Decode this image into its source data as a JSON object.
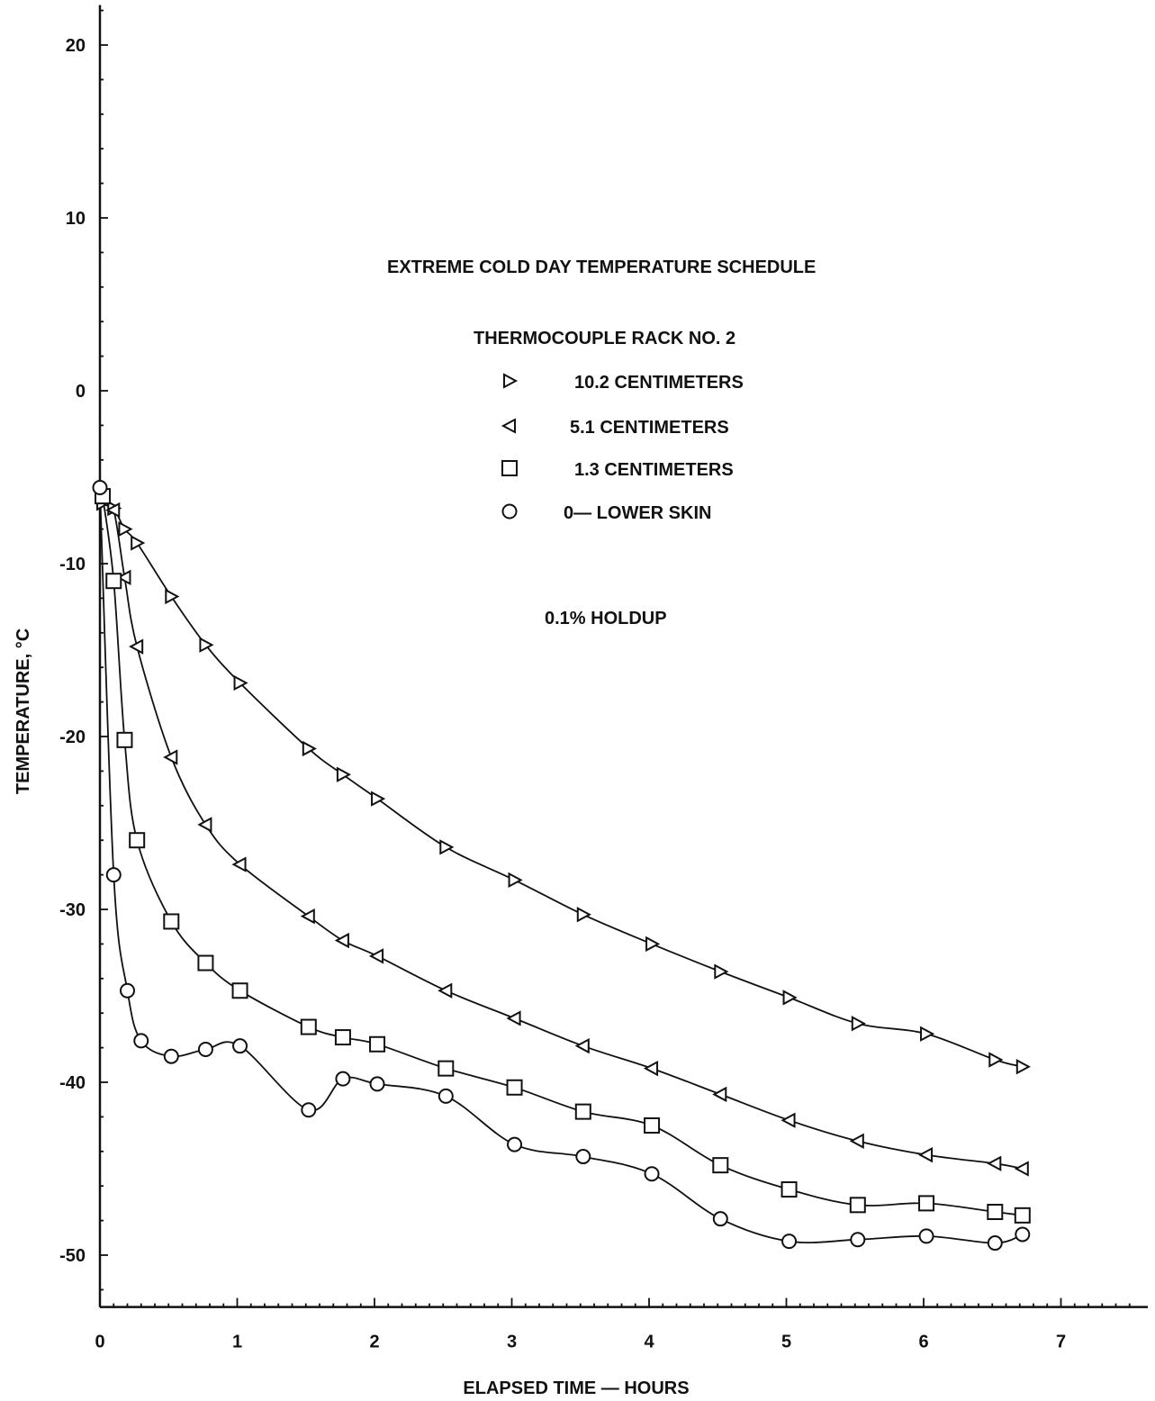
{
  "chart_data": {
    "type": "line",
    "title": "EXTREME COLD DAY TEMPERATURE SCHEDULE",
    "subtitle": "THERMOCOUPLE RACK NO. 2",
    "annotation": "0.1% HOLDUP",
    "xlabel": "ELAPSED TIME — HOURS",
    "ylabel": "TEMPERATURE, °C",
    "xlim": [
      0,
      7.5
    ],
    "ylim": [
      -53,
      22
    ],
    "x_ticks": [
      "0",
      "1",
      "2",
      "3",
      "4",
      "5",
      "6",
      "7"
    ],
    "y_ticks": [
      "20",
      "10",
      "0",
      "-10",
      "-20",
      "-30",
      "-40",
      "-50"
    ],
    "y_tick_values": [
      20,
      10,
      0,
      -10,
      -20,
      -30,
      -40,
      -50
    ],
    "x_tick_values": [
      0,
      1,
      2,
      3,
      4,
      5,
      6,
      7
    ],
    "grid": false,
    "legend_position": "top-center",
    "series": [
      {
        "name": "10.2 CENTIMETERS",
        "marker": "triangle-right",
        "x": [
          0.02,
          0.1,
          0.18,
          0.27,
          0.52,
          0.77,
          1.02,
          1.52,
          1.77,
          2.02,
          2.52,
          3.02,
          3.52,
          4.02,
          4.52,
          5.02,
          5.52,
          6.02,
          6.52,
          6.72
        ],
        "y": [
          -6.5,
          -6.8,
          -8.0,
          -8.8,
          -11.9,
          -14.7,
          -16.9,
          -20.7,
          -22.2,
          -23.6,
          -26.4,
          -28.3,
          -30.3,
          -32.0,
          -33.6,
          -35.1,
          -36.6,
          -37.2,
          -38.7,
          -39.1
        ]
      },
      {
        "name": "5.1 CENTIMETERS",
        "marker": "triangle-left",
        "x": [
          0.02,
          0.1,
          0.18,
          0.27,
          0.52,
          0.77,
          1.02,
          1.52,
          1.77,
          2.02,
          2.52,
          3.02,
          3.52,
          4.02,
          4.52,
          5.02,
          5.52,
          6.02,
          6.52,
          6.72
        ],
        "y": [
          -6.3,
          -6.9,
          -10.8,
          -14.8,
          -21.2,
          -25.1,
          -27.4,
          -30.4,
          -31.8,
          -32.7,
          -34.7,
          -36.3,
          -37.9,
          -39.2,
          -40.7,
          -42.2,
          -43.4,
          -44.2,
          -44.7,
          -45.0
        ]
      },
      {
        "name": "1.3 CENTIMETERS",
        "marker": "square",
        "x": [
          0.02,
          0.1,
          0.18,
          0.27,
          0.52,
          0.77,
          1.02,
          1.52,
          1.77,
          2.02,
          2.52,
          3.02,
          3.52,
          4.02,
          4.52,
          5.02,
          5.52,
          6.02,
          6.52,
          6.72
        ],
        "y": [
          -6.1,
          -11.0,
          -20.2,
          -26.0,
          -30.7,
          -33.1,
          -34.7,
          -36.8,
          -37.4,
          -37.8,
          -39.2,
          -40.3,
          -41.7,
          -42.5,
          -44.8,
          -46.2,
          -47.1,
          -47.0,
          -47.5,
          -47.7
        ]
      },
      {
        "name": "0— LOWER SKIN",
        "marker": "circle",
        "x": [
          0.0,
          0.1,
          0.2,
          0.3,
          0.52,
          0.77,
          1.02,
          1.52,
          1.77,
          2.02,
          2.52,
          3.02,
          3.52,
          4.02,
          4.52,
          5.02,
          5.52,
          6.02,
          6.52,
          6.72
        ],
        "y": [
          -5.6,
          -28.0,
          -34.7,
          -37.6,
          -38.5,
          -38.1,
          -37.9,
          -41.6,
          -39.8,
          -40.1,
          -40.8,
          -43.6,
          -44.3,
          -45.3,
          -47.9,
          -49.2,
          -49.1,
          -48.9,
          -49.3,
          -48.8
        ]
      }
    ]
  }
}
